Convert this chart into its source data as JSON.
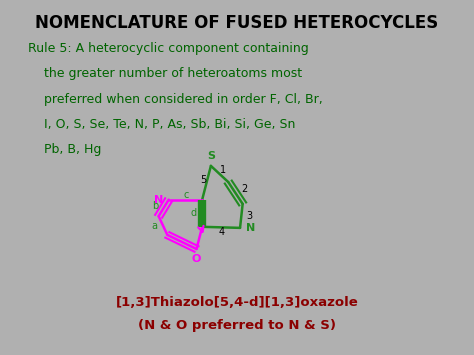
{
  "title": "NOMENCLATURE OF FUSED HETEROCYCLES",
  "title_color": "#000000",
  "title_fontsize": 12,
  "bg_color": "#b0b0b0",
  "rule_text_lines": [
    "Rule 5: A heterocyclic component containing",
    "    the greater number of heteroatoms most",
    "    preferred when considered in order F, Cl, Br,",
    "    I, O, S, Se, Te, N, P, As, Sb, Bi, Si, Ge, Sn",
    "    Pb, B, Hg"
  ],
  "rule_color": "#006400",
  "rule_fontsize": 9.0,
  "caption_line1": "[1,3]Thiazolo[5,4-d][1,3]oxazole",
  "caption_line2": "(N & O preferred to N & S)",
  "caption_color": "#8B0000",
  "caption_fontsize": 9.5,
  "green_color": "#228B22",
  "magenta_color": "#FF00FF"
}
